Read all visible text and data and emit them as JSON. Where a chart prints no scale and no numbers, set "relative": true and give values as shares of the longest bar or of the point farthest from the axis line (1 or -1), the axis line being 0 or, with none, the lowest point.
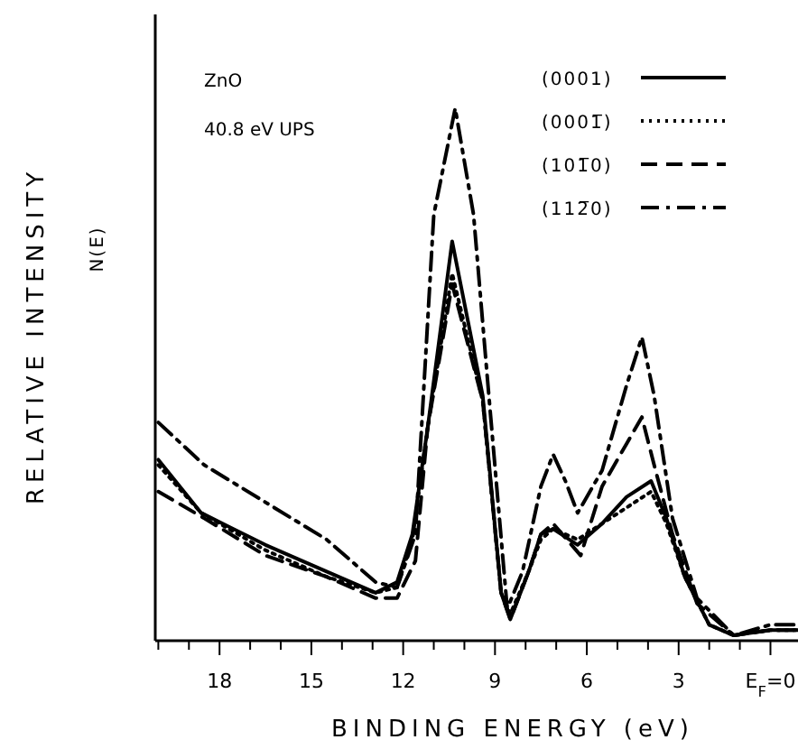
{
  "chart_data": {
    "type": "line",
    "relative": true,
    "xlabel": "BINDING ENERGY (eV)",
    "ylabel": "RELATIVE INTENSITY\nN(E)",
    "annotations": [
      "ZnO",
      "40.8 eV  UPS"
    ],
    "legend": "top right",
    "grid": false,
    "marker": "none",
    "xlim": [
      20.1,
      -0.9
    ],
    "xticks": [
      {
        "value": 20,
        "label": null
      },
      {
        "value": 19,
        "label": null
      },
      18,
      {
        "value": 17,
        "label": null
      },
      {
        "value": 16,
        "label": null
      },
      15,
      {
        "value": 14,
        "label": null
      },
      {
        "value": 13,
        "label": null
      },
      12,
      {
        "value": 11,
        "label": null
      },
      {
        "value": 10,
        "label": null
      },
      9,
      {
        "value": 8,
        "label": null
      },
      {
        "value": 7,
        "label": null
      },
      6,
      {
        "value": 5,
        "label": null
      },
      {
        "value": 4,
        "label": null
      },
      3,
      {
        "value": 2,
        "label": null
      },
      {
        "value": 1,
        "label": null
      },
      {
        "value": 0,
        "label": "E$_{F}$=0"
      }
    ],
    "series": [
      {
        "name": "(0001)",
        "color": "#000000",
        "line_style": "solid",
        "x": [
          20,
          18.6,
          16.5,
          14.5,
          12.9,
          12.2,
          11.7,
          11.2,
          10.4,
          9.4,
          8.8,
          8.5,
          7.9,
          7.5,
          7.1,
          6.3,
          5.5,
          4.7,
          3.9,
          3.4,
          2.8,
          2,
          1.2,
          0,
          -0.9
        ],
        "values": [
          0.34,
          0.24,
          0.18,
          0.13,
          0.09,
          0.11,
          0.2,
          0.4,
          0.75,
          0.46,
          0.09,
          0.04,
          0.13,
          0.2,
          0.21,
          0.18,
          0.22,
          0.27,
          0.3,
          0.23,
          0.12,
          0.03,
          0.01,
          0.02,
          0.02
        ]
      },
      {
        "name": "(0001̅)",
        "color": "#000000",
        "line_style": "dotted",
        "x": [
          20,
          18.6,
          16.5,
          14.5,
          12.9,
          12.2,
          11.7,
          11.2,
          10.4,
          9.4,
          8.8,
          8.5,
          7.9,
          7.5,
          7.1,
          6.3,
          5.5,
          4.7,
          3.9,
          3.4,
          2.8,
          2,
          1.2,
          0,
          -0.9
        ],
        "values": [
          0.33,
          0.24,
          0.17,
          0.12,
          0.09,
          0.1,
          0.19,
          0.4,
          0.69,
          0.45,
          0.09,
          0.05,
          0.13,
          0.19,
          0.21,
          0.19,
          0.22,
          0.25,
          0.28,
          0.22,
          0.12,
          0.03,
          0.01,
          0.02,
          0.02
        ]
      },
      {
        "name": "(101̅0)",
        "color": "#000000",
        "line_style": "dashed",
        "x": [
          20,
          18.5,
          16.5,
          14.5,
          12.9,
          12.2,
          11.6,
          11.2,
          10.4,
          9.4,
          8.8,
          8.5,
          7.9,
          7.5,
          7.1,
          6.2,
          5.5,
          4.7,
          4.2,
          3.8,
          3.2,
          2.4,
          1.2,
          0,
          -0.9
        ],
        "values": [
          0.28,
          0.23,
          0.16,
          0.12,
          0.08,
          0.08,
          0.15,
          0.4,
          0.67,
          0.45,
          0.09,
          0.04,
          0.13,
          0.2,
          0.22,
          0.16,
          0.29,
          0.37,
          0.42,
          0.33,
          0.2,
          0.07,
          0.01,
          0.02,
          0.02
        ]
      },
      {
        "name": "(112̅0)",
        "color": "#000000",
        "line_style": "dashdot",
        "x": [
          20,
          18.5,
          16.5,
          14.5,
          12.9,
          12.2,
          11.6,
          11,
          10.3,
          9.7,
          9.2,
          8.6,
          8.1,
          7.5,
          7.1,
          6.7,
          6.3,
          5.5,
          4.7,
          4.2,
          3.8,
          3.2,
          2.4,
          1.2,
          0,
          -0.9
        ],
        "values": [
          0.41,
          0.33,
          0.26,
          0.19,
          0.11,
          0.1,
          0.2,
          0.8,
          1,
          0.8,
          0.46,
          0.06,
          0.13,
          0.29,
          0.35,
          0.3,
          0.24,
          0.32,
          0.48,
          0.57,
          0.46,
          0.23,
          0.08,
          0.01,
          0.03,
          0.03
        ]
      }
    ]
  }
}
